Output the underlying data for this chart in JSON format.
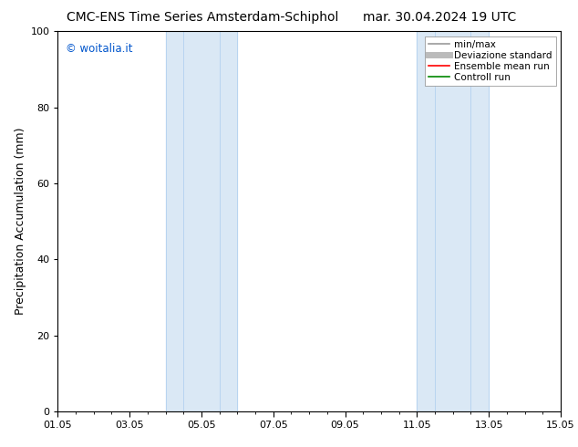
{
  "title_left": "CMC-ENS Time Series Amsterdam-Schiphol",
  "title_right": "mar. 30.04.2024 19 UTC",
  "ylabel": "Precipitation Accumulation (mm)",
  "ylim": [
    0,
    100
  ],
  "yticks": [
    0,
    20,
    40,
    60,
    80,
    100
  ],
  "xtick_labels": [
    "01.05",
    "03.05",
    "05.05",
    "07.05",
    "09.05",
    "11.05",
    "13.05",
    "15.05"
  ],
  "xtick_days": [
    0,
    2,
    4,
    6,
    8,
    10,
    12,
    14
  ],
  "xlim_days": [
    0,
    14
  ],
  "shaded_regions": [
    {
      "xmin": 3.0,
      "xmax": 5.0,
      "color": "#dae8f5"
    },
    {
      "xmin": 10.0,
      "xmax": 12.0,
      "color": "#dae8f5"
    }
  ],
  "shade_lines": [
    {
      "x": 3.0
    },
    {
      "x": 3.5
    },
    {
      "x": 4.5
    },
    {
      "x": 5.0
    },
    {
      "x": 10.0
    },
    {
      "x": 10.5
    },
    {
      "x": 11.5
    },
    {
      "x": 12.0
    }
  ],
  "copyright_text": "© woitalia.it",
  "copyright_color": "#0055cc",
  "legend_entries": [
    {
      "label": "min/max",
      "color": "#999999",
      "lw": 1.2
    },
    {
      "label": "Deviazione standard",
      "color": "#bbbbbb",
      "lw": 5
    },
    {
      "label": "Ensemble mean run",
      "color": "#ff0000",
      "lw": 1.2
    },
    {
      "label": "Controll run",
      "color": "#008800",
      "lw": 1.2
    }
  ],
  "bg_color": "#ffffff",
  "title_fontsize": 10,
  "tick_fontsize": 8,
  "ylabel_fontsize": 9,
  "legend_fontsize": 7.5
}
